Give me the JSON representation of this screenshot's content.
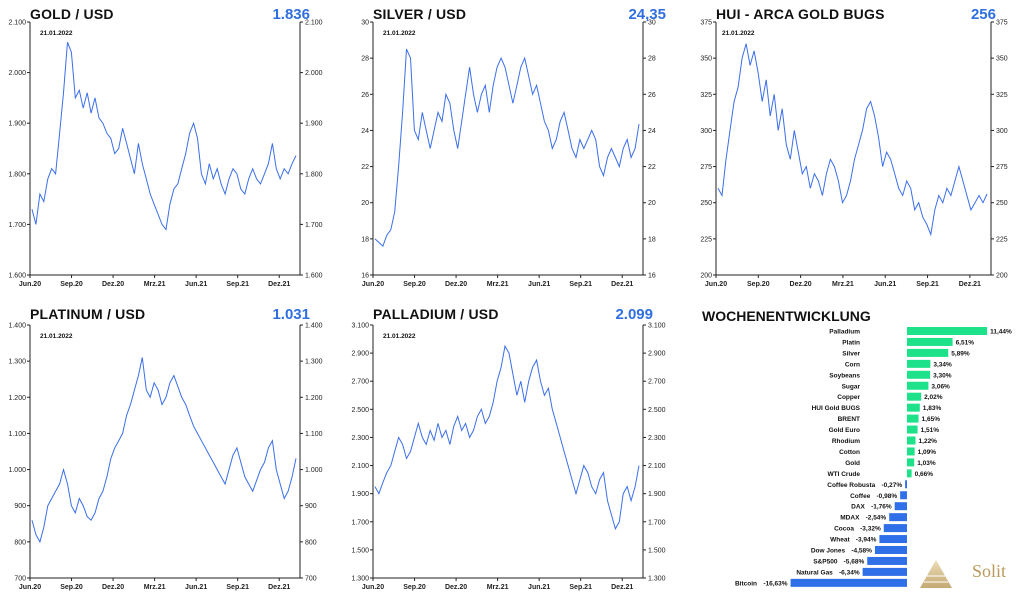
{
  "colors": {
    "line": "#3b6fe8",
    "value": "#2f6fe0",
    "positive": "#1ee28a",
    "negative": "#2f6fe8"
  },
  "chart_data": [
    {
      "type": "line",
      "title": "GOLD / USD",
      "current_value": "1.836",
      "annotation": "21.01.2022",
      "x_ticks": [
        "Jun.20",
        "Sep.20",
        "Dez.20",
        "Mrz.21",
        "Jun.21",
        "Sep.21",
        "Dez.21"
      ],
      "y_ticks": [
        "1.600",
        "1.700",
        "1.800",
        "1.900",
        "2.000",
        "2.100"
      ],
      "ylim": [
        1600,
        2100
      ],
      "series": [
        {
          "values": [
            1730,
            1700,
            1760,
            1745,
            1790,
            1810,
            1800,
            1880,
            1960,
            2060,
            2040,
            1950,
            1965,
            1930,
            1960,
            1920,
            1950,
            1910,
            1900,
            1880,
            1870,
            1840,
            1850,
            1890,
            1860,
            1830,
            1800,
            1860,
            1820,
            1790,
            1760,
            1740,
            1720,
            1700,
            1690,
            1740,
            1770,
            1780,
            1810,
            1840,
            1880,
            1900,
            1870,
            1800,
            1780,
            1820,
            1790,
            1810,
            1780,
            1760,
            1790,
            1810,
            1800,
            1770,
            1760,
            1790,
            1810,
            1790,
            1780,
            1800,
            1820,
            1860,
            1810,
            1790,
            1810,
            1800,
            1820,
            1836
          ]
        }
      ]
    },
    {
      "type": "line",
      "title": "SILVER / USD",
      "current_value": "24,35",
      "annotation": "21.01.2022",
      "x_ticks": [
        "Jun.20",
        "Sep.20",
        "Dez.20",
        "Mrz.21",
        "Jun.21",
        "Sep.21",
        "Dez.21"
      ],
      "y_ticks": [
        "16",
        "18",
        "20",
        "22",
        "24",
        "26",
        "28",
        "30"
      ],
      "ylim": [
        16,
        30
      ],
      "series": [
        {
          "values": [
            18,
            17.8,
            17.6,
            18.2,
            18.5,
            19.5,
            22,
            25,
            28.5,
            28,
            24,
            23.5,
            25,
            24,
            23,
            24,
            25,
            24.5,
            26,
            25.5,
            24,
            23,
            24.5,
            26,
            27.5,
            26,
            25,
            26,
            26.5,
            25,
            26.5,
            27.5,
            28,
            27.5,
            26.5,
            25.5,
            26.5,
            27.5,
            28,
            27,
            26,
            26.5,
            25.5,
            24.5,
            24,
            23,
            23.5,
            24.5,
            25,
            24,
            23,
            22.5,
            23.5,
            23,
            23.5,
            24,
            23.5,
            22,
            21.5,
            22.5,
            23,
            22.5,
            22,
            23,
            23.5,
            22.5,
            23,
            24.35
          ]
        }
      ]
    },
    {
      "type": "line",
      "title": "HUI - ARCA GOLD BUGS",
      "current_value": "256",
      "annotation": "21.01.2022",
      "x_ticks": [
        "Jun.20",
        "Sep.20",
        "Dez.20",
        "Mrz.21",
        "Jun.21",
        "Sep.21",
        "Dez.21"
      ],
      "y_ticks": [
        "200",
        "225",
        "250",
        "275",
        "300",
        "325",
        "350",
        "375"
      ],
      "ylim": [
        200,
        375
      ],
      "series": [
        {
          "values": [
            260,
            255,
            280,
            300,
            320,
            330,
            350,
            360,
            345,
            355,
            340,
            320,
            335,
            310,
            325,
            300,
            315,
            290,
            280,
            300,
            285,
            270,
            275,
            260,
            270,
            265,
            255,
            270,
            280,
            275,
            265,
            250,
            255,
            265,
            280,
            290,
            300,
            315,
            320,
            310,
            295,
            275,
            285,
            280,
            270,
            260,
            255,
            265,
            260,
            245,
            250,
            240,
            235,
            228,
            245,
            255,
            250,
            260,
            255,
            265,
            275,
            265,
            255,
            245,
            250,
            255,
            250,
            256
          ]
        }
      ]
    },
    {
      "type": "line",
      "title": "PLATINUM / USD",
      "current_value": "1.031",
      "annotation": "21.01.2022",
      "x_ticks": [
        "Jun.20",
        "Sep.20",
        "Dez.20",
        "Mrz.21",
        "Jun.21",
        "Sep.21",
        "Dez.21"
      ],
      "y_ticks": [
        "700",
        "800",
        "900",
        "1.000",
        "1.100",
        "1.200",
        "1.300",
        "1.400"
      ],
      "ylim": [
        700,
        1400
      ],
      "series": [
        {
          "values": [
            860,
            820,
            800,
            840,
            900,
            920,
            940,
            960,
            1000,
            960,
            900,
            880,
            920,
            900,
            870,
            860,
            880,
            920,
            940,
            980,
            1030,
            1060,
            1080,
            1100,
            1150,
            1180,
            1220,
            1260,
            1310,
            1220,
            1200,
            1240,
            1220,
            1180,
            1200,
            1240,
            1260,
            1230,
            1200,
            1180,
            1150,
            1120,
            1100,
            1080,
            1060,
            1040,
            1020,
            1000,
            980,
            960,
            1000,
            1040,
            1060,
            1020,
            980,
            960,
            940,
            970,
            1000,
            1020,
            1060,
            1080,
            1000,
            960,
            920,
            940,
            980,
            1031
          ]
        }
      ]
    },
    {
      "type": "line",
      "title": "PALLADIUM / USD",
      "current_value": "2.099",
      "annotation": "21.01.2022",
      "x_ticks": [
        "Jun.20",
        "Sep.20",
        "Dez.20",
        "Mrz.21",
        "Jun.21",
        "Sep.21",
        "Dez.21"
      ],
      "y_ticks": [
        "1.300",
        "1.500",
        "1.700",
        "1.900",
        "2.100",
        "2.300",
        "2.500",
        "2.700",
        "2.900",
        "3.100"
      ],
      "ylim": [
        1300,
        3100
      ],
      "series": [
        {
          "values": [
            1950,
            1900,
            1980,
            2050,
            2100,
            2200,
            2300,
            2250,
            2150,
            2200,
            2300,
            2400,
            2300,
            2250,
            2350,
            2280,
            2400,
            2300,
            2350,
            2250,
            2380,
            2450,
            2350,
            2400,
            2300,
            2350,
            2450,
            2500,
            2400,
            2450,
            2550,
            2700,
            2800,
            2950,
            2900,
            2750,
            2600,
            2700,
            2550,
            2700,
            2800,
            2850,
            2700,
            2600,
            2650,
            2500,
            2400,
            2300,
            2200,
            2100,
            2000,
            1900,
            2000,
            2100,
            2050,
            1950,
            1900,
            2000,
            2050,
            1850,
            1750,
            1650,
            1700,
            1900,
            1950,
            1850,
            1950,
            2099
          ]
        }
      ]
    },
    {
      "type": "bar",
      "title": "WOCHENENTWICKLUNG",
      "categories": [
        "Palladium",
        "Platin",
        "Silver",
        "Corn",
        "Soybeans",
        "Sugar",
        "Copper",
        "HUI Gold BUGS",
        "BRENT",
        "Gold Euro",
        "Rhodium",
        "Cotton",
        "Gold",
        "WTI Crude",
        "Coffee Robusta",
        "Coffee",
        "DAX",
        "MDAX",
        "Cocoa",
        "Wheat",
        "Dow Jones",
        "S&P500",
        "Natural Gas",
        "Bitcoin"
      ],
      "values": [
        11.44,
        6.51,
        5.89,
        3.34,
        3.3,
        3.06,
        2.02,
        1.83,
        1.65,
        1.51,
        1.22,
        1.09,
        1.03,
        0.66,
        -0.27,
        -0.98,
        -1.76,
        -2.54,
        -3.32,
        -3.94,
        -4.58,
        -5.68,
        -6.34,
        -16.63
      ],
      "labels": [
        "11,44%",
        "6,51%",
        "5,89%",
        "3,34%",
        "3,30%",
        "3,06%",
        "2,02%",
        "1,83%",
        "1,65%",
        "1,51%",
        "1,22%",
        "1,09%",
        "1,03%",
        "0,66%",
        "-0,27%",
        "-0,98%",
        "-1,76%",
        "-2,54%",
        "-3,32%",
        "-3,94%",
        "-4,58%",
        "-5,68%",
        "-6,34%",
        "-16,63%"
      ]
    }
  ],
  "logo": {
    "text": "Solit"
  }
}
